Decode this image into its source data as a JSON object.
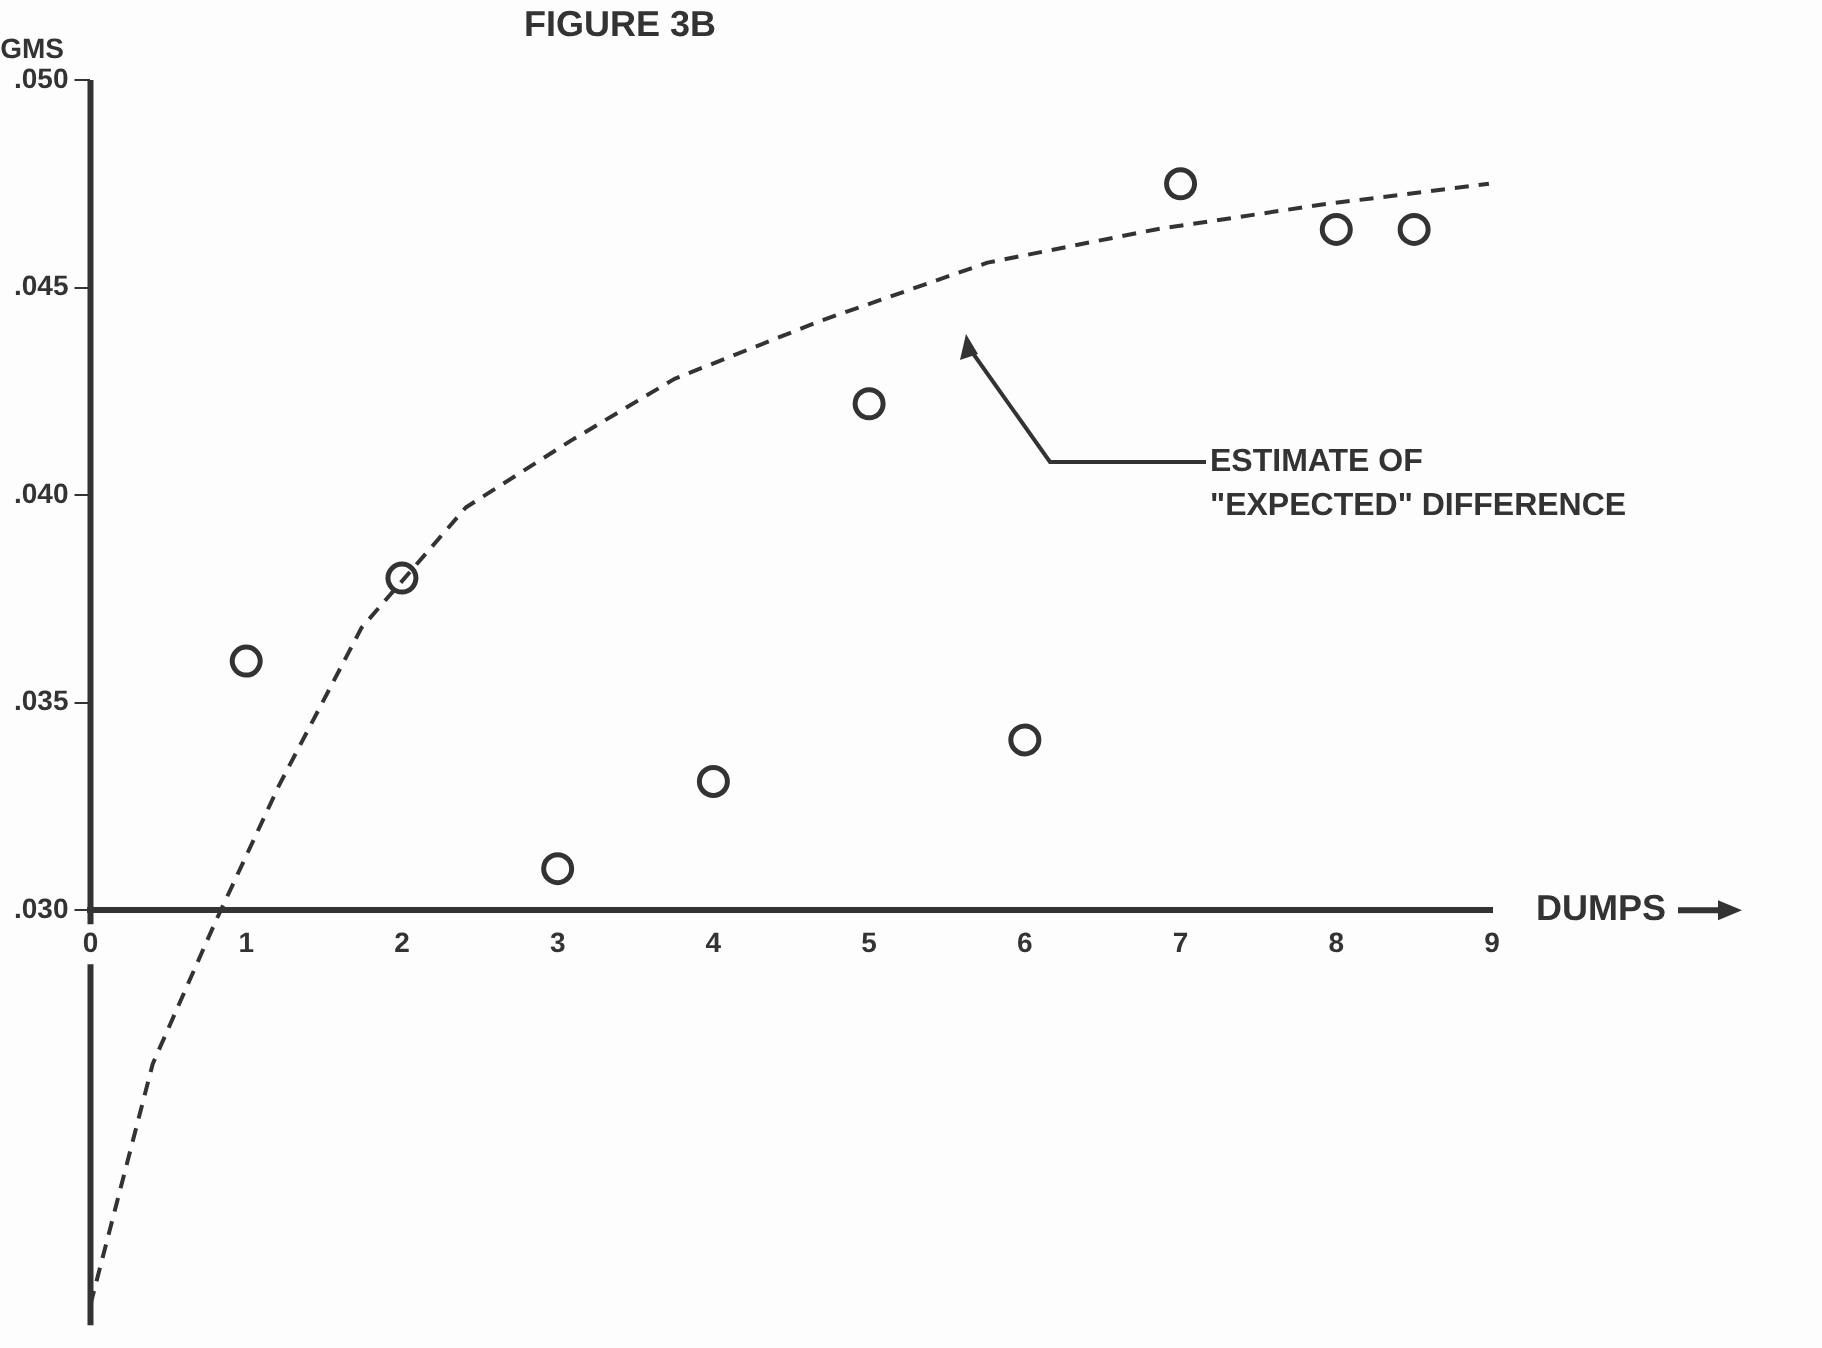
{
  "chart_data": {
    "type": "scatter",
    "title": "FIGURE 3B",
    "xlabel": "DUMPS",
    "ylabel": "GMS",
    "xlim": [
      0,
      9
    ],
    "xticks": [
      0,
      1,
      2,
      3,
      4,
      5,
      6,
      7,
      8,
      9
    ],
    "ylim": [
      0.02,
      0.05
    ],
    "yticks": [
      {
        "value": 0.03,
        "label": ".030"
      },
      {
        "value": 0.035,
        "label": ".035"
      },
      {
        "value": 0.04,
        "label": ".040"
      },
      {
        "value": 0.045,
        "label": ".045"
      },
      {
        "value": 0.05,
        "label": ".050"
      }
    ],
    "grid": false,
    "legend": false,
    "marker": "circle",
    "series": [
      {
        "color": "#333333",
        "x": [
          1,
          2,
          3,
          4,
          5,
          6,
          7,
          8,
          8.5
        ],
        "values": [
          0.036,
          0.038,
          0.031,
          0.0331,
          0.0422,
          0.0341,
          0.0475,
          0.0464,
          0.0464
        ]
      },
      {
        "type": "line",
        "line_style": "dashed",
        "marker": "none",
        "color": "#333333",
        "x": [
          0,
          0.4,
          0.8,
          1.21,
          1.74,
          2.41,
          3.08,
          3.75,
          4.69,
          5.76,
          6.84,
          7.91,
          8.98
        ],
        "values": [
          0.0205,
          0.0263,
          0.0297,
          0.033,
          0.0368,
          0.0397,
          0.0413,
          0.0428,
          0.0442,
          0.0456,
          0.0464,
          0.047,
          0.0475
        ]
      }
    ],
    "annotations": [
      "ESTIMATE OF\n\"EXPECTED\" DIFFERENCE"
    ]
  }
}
